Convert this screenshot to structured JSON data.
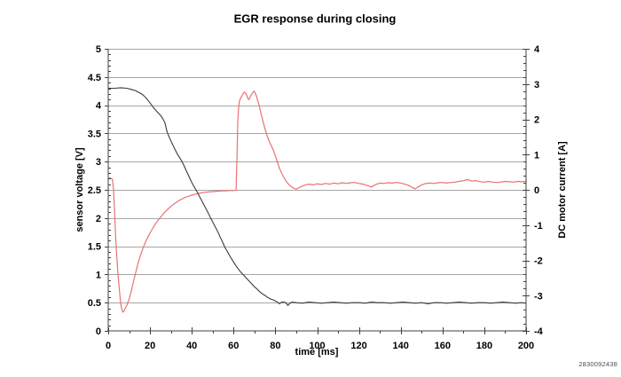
{
  "page": {
    "background": "#ffffff",
    "footnote_id": "2830092438"
  },
  "chart_data": {
    "type": "line",
    "title": "EGR response during closing",
    "xlabel": "time [ms]",
    "ylabel_left": "sensor voltage [V]",
    "ylabel_right": "DC motor current [A]",
    "legend": "none",
    "grid": "horizontal gridlines at every 0.5 V of the left axis",
    "x_range": [
      0,
      200
    ],
    "x_major": 20,
    "x_minor": 10,
    "x_ticks": [
      "0",
      "20",
      "40",
      "60",
      "80",
      "100",
      "120",
      "140",
      "160",
      "180",
      "200"
    ],
    "y_left_range": [
      0,
      5
    ],
    "y_left_major": 0.5,
    "y_left_minor": 0.1,
    "y_left_ticks": [
      "0",
      "0.5",
      "1",
      "1.5",
      "2",
      "2.5",
      "3",
      "3.5",
      "4",
      "4.5",
      "5"
    ],
    "y_right_range": [
      -4,
      4
    ],
    "y_right_major": 1,
    "y_right_minor": 0.2,
    "y_right_ticks": [
      "-4",
      "-3",
      "-2",
      "-1",
      "0",
      "1",
      "2",
      "3",
      "4"
    ],
    "colors": {
      "voltage_line": "#3a3a3a",
      "current_line": "#e87272",
      "grid": "#a6a6a6",
      "axis": "#404040",
      "text": "#000000"
    },
    "series": [
      {
        "name": "sensor voltage",
        "axis": "left",
        "unit": "V",
        "color_key": "voltage_line",
        "points": [
          [
            0,
            4.3
          ],
          [
            3,
            4.3
          ],
          [
            6,
            4.31
          ],
          [
            9,
            4.3
          ],
          [
            11,
            4.28
          ],
          [
            13,
            4.26
          ],
          [
            15,
            4.22
          ],
          [
            16,
            4.2
          ],
          [
            17,
            4.17
          ],
          [
            18,
            4.13
          ],
          [
            19,
            4.09
          ],
          [
            20,
            4.04
          ],
          [
            21,
            3.99
          ],
          [
            22,
            3.94
          ],
          [
            23,
            3.9
          ],
          [
            24,
            3.86
          ],
          [
            25,
            3.82
          ],
          [
            26,
            3.77
          ],
          [
            27,
            3.7
          ],
          [
            27.5,
            3.63
          ],
          [
            28,
            3.55
          ],
          [
            29,
            3.45
          ],
          [
            30,
            3.37
          ],
          [
            31,
            3.29
          ],
          [
            32,
            3.21
          ],
          [
            33,
            3.14
          ],
          [
            34,
            3.08
          ],
          [
            35,
            3.02
          ],
          [
            36,
            2.95
          ],
          [
            37,
            2.87
          ],
          [
            38,
            2.79
          ],
          [
            39,
            2.71
          ],
          [
            40,
            2.63
          ],
          [
            41,
            2.56
          ],
          [
            42,
            2.5
          ],
          [
            43,
            2.43
          ],
          [
            44,
            2.36
          ],
          [
            45,
            2.29
          ],
          [
            46,
            2.22
          ],
          [
            47,
            2.15
          ],
          [
            48,
            2.08
          ],
          [
            49,
            2.0
          ],
          [
            50,
            1.93
          ],
          [
            51,
            1.86
          ],
          [
            52,
            1.79
          ],
          [
            53,
            1.71
          ],
          [
            54,
            1.63
          ],
          [
            55,
            1.55
          ],
          [
            56,
            1.47
          ],
          [
            57,
            1.41
          ],
          [
            58,
            1.34
          ],
          [
            59,
            1.28
          ],
          [
            60,
            1.22
          ],
          [
            61,
            1.16
          ],
          [
            62,
            1.11
          ],
          [
            63,
            1.06
          ],
          [
            64,
            1.02
          ],
          [
            65,
            0.98
          ],
          [
            66,
            0.94
          ],
          [
            67,
            0.9
          ],
          [
            68,
            0.86
          ],
          [
            69,
            0.82
          ],
          [
            70,
            0.78
          ],
          [
            71,
            0.75
          ],
          [
            72,
            0.71
          ],
          [
            73,
            0.68
          ],
          [
            74,
            0.65
          ],
          [
            75,
            0.63
          ],
          [
            76,
            0.6
          ],
          [
            77,
            0.58
          ],
          [
            78,
            0.56
          ],
          [
            79,
            0.55
          ],
          [
            80,
            0.53
          ],
          [
            81,
            0.51
          ],
          [
            82,
            0.48
          ],
          [
            83,
            0.51
          ],
          [
            84,
            0.51
          ],
          [
            85,
            0.5
          ],
          [
            86,
            0.45
          ],
          [
            87,
            0.49
          ],
          [
            88,
            0.51
          ],
          [
            90,
            0.5
          ],
          [
            93,
            0.49
          ],
          [
            96,
            0.51
          ],
          [
            99,
            0.5
          ],
          [
            102,
            0.49
          ],
          [
            105,
            0.5
          ],
          [
            108,
            0.51
          ],
          [
            111,
            0.5
          ],
          [
            114,
            0.49
          ],
          [
            117,
            0.5
          ],
          [
            120,
            0.5
          ],
          [
            123,
            0.49
          ],
          [
            126,
            0.51
          ],
          [
            129,
            0.5
          ],
          [
            132,
            0.5
          ],
          [
            135,
            0.49
          ],
          [
            138,
            0.5
          ],
          [
            141,
            0.51
          ],
          [
            144,
            0.5
          ],
          [
            147,
            0.49
          ],
          [
            150,
            0.5
          ],
          [
            153,
            0.48
          ],
          [
            156,
            0.5
          ],
          [
            159,
            0.5
          ],
          [
            162,
            0.49
          ],
          [
            165,
            0.5
          ],
          [
            168,
            0.51
          ],
          [
            171,
            0.5
          ],
          [
            174,
            0.49
          ],
          [
            177,
            0.5
          ],
          [
            180,
            0.5
          ],
          [
            183,
            0.49
          ],
          [
            186,
            0.5
          ],
          [
            189,
            0.51
          ],
          [
            192,
            0.5
          ],
          [
            195,
            0.49
          ],
          [
            198,
            0.5
          ],
          [
            200,
            0.49
          ]
        ]
      },
      {
        "name": "DC motor current",
        "axis": "right",
        "unit": "A",
        "color_key": "current_line",
        "points": [
          [
            0,
            0.32
          ],
          [
            1,
            0.34
          ],
          [
            2,
            0.3
          ],
          [
            2.5,
            0.05
          ],
          [
            3,
            -0.6
          ],
          [
            3.5,
            -1.25
          ],
          [
            4,
            -1.8
          ],
          [
            4.5,
            -2.25
          ],
          [
            5,
            -2.62
          ],
          [
            5.5,
            -2.95
          ],
          [
            6,
            -3.22
          ],
          [
            6.5,
            -3.4
          ],
          [
            7,
            -3.47
          ],
          [
            7.5,
            -3.44
          ],
          [
            8,
            -3.38
          ],
          [
            9,
            -3.26
          ],
          [
            10,
            -3.1
          ],
          [
            11,
            -2.88
          ],
          [
            12,
            -2.62
          ],
          [
            13,
            -2.38
          ],
          [
            14,
            -2.14
          ],
          [
            15,
            -1.94
          ],
          [
            16,
            -1.76
          ],
          [
            17,
            -1.6
          ],
          [
            18,
            -1.46
          ],
          [
            19,
            -1.34
          ],
          [
            20,
            -1.22
          ],
          [
            21,
            -1.12
          ],
          [
            22,
            -1.02
          ],
          [
            23,
            -0.93
          ],
          [
            24,
            -0.85
          ],
          [
            25,
            -0.78
          ],
          [
            26,
            -0.71
          ],
          [
            27,
            -0.64
          ],
          [
            28,
            -0.58
          ],
          [
            29,
            -0.52
          ],
          [
            30,
            -0.47
          ],
          [
            31,
            -0.42
          ],
          [
            32,
            -0.38
          ],
          [
            33,
            -0.34
          ],
          [
            34,
            -0.3
          ],
          [
            35,
            -0.27
          ],
          [
            36,
            -0.24
          ],
          [
            37,
            -0.21
          ],
          [
            38,
            -0.19
          ],
          [
            39,
            -0.17
          ],
          [
            40,
            -0.15
          ],
          [
            42,
            -0.12
          ],
          [
            44,
            -0.09
          ],
          [
            46,
            -0.07
          ],
          [
            48,
            -0.06
          ],
          [
            50,
            -0.05
          ],
          [
            52,
            -0.04
          ],
          [
            54,
            -0.03
          ],
          [
            56,
            -0.03
          ],
          [
            58,
            -0.02
          ],
          [
            60,
            -0.02
          ],
          [
            61.2,
            -0.01
          ],
          [
            61.6,
            0.9
          ],
          [
            62,
            1.9
          ],
          [
            62.4,
            2.35
          ],
          [
            62.8,
            2.52
          ],
          [
            63.4,
            2.6
          ],
          [
            64,
            2.67
          ],
          [
            64.6,
            2.73
          ],
          [
            65.2,
            2.77
          ],
          [
            65.8,
            2.74
          ],
          [
            66.4,
            2.66
          ],
          [
            67,
            2.57
          ],
          [
            67.4,
            2.56
          ],
          [
            68,
            2.64
          ],
          [
            68.6,
            2.71
          ],
          [
            69.2,
            2.76
          ],
          [
            69.8,
            2.8
          ],
          [
            70.4,
            2.74
          ],
          [
            71,
            2.65
          ],
          [
            71.6,
            2.52
          ],
          [
            72.2,
            2.4
          ],
          [
            73,
            2.2
          ],
          [
            74,
            1.96
          ],
          [
            75,
            1.74
          ],
          [
            76,
            1.54
          ],
          [
            77,
            1.38
          ],
          [
            78,
            1.26
          ],
          [
            79,
            1.13
          ],
          [
            80,
            0.96
          ],
          [
            81,
            0.78
          ],
          [
            82,
            0.61
          ],
          [
            83,
            0.47
          ],
          [
            84,
            0.36
          ],
          [
            85,
            0.26
          ],
          [
            86,
            0.18
          ],
          [
            87,
            0.12
          ],
          [
            88,
            0.07
          ],
          [
            89,
            0.04
          ],
          [
            90,
            0.02
          ],
          [
            91,
            0.05
          ],
          [
            92,
            0.08
          ],
          [
            93,
            0.11
          ],
          [
            94,
            0.13
          ],
          [
            96,
            0.16
          ],
          [
            98,
            0.14
          ],
          [
            100,
            0.17
          ],
          [
            102,
            0.15
          ],
          [
            104,
            0.18
          ],
          [
            106,
            0.16
          ],
          [
            108,
            0.19
          ],
          [
            110,
            0.17
          ],
          [
            112,
            0.2
          ],
          [
            114,
            0.18
          ],
          [
            116,
            0.2
          ],
          [
            118,
            0.21
          ],
          [
            120,
            0.18
          ],
          [
            122,
            0.16
          ],
          [
            124,
            0.12
          ],
          [
            126,
            0.08
          ],
          [
            128,
            0.15
          ],
          [
            130,
            0.19
          ],
          [
            132,
            0.18
          ],
          [
            134,
            0.2
          ],
          [
            136,
            0.19
          ],
          [
            138,
            0.21
          ],
          [
            140,
            0.19
          ],
          [
            142,
            0.16
          ],
          [
            144,
            0.12
          ],
          [
            146,
            0.05
          ],
          [
            147,
            0.03
          ],
          [
            148,
            0.07
          ],
          [
            150,
            0.14
          ],
          [
            152,
            0.18
          ],
          [
            154,
            0.19
          ],
          [
            156,
            0.18
          ],
          [
            158,
            0.2
          ],
          [
            160,
            0.21
          ],
          [
            162,
            0.19
          ],
          [
            164,
            0.21
          ],
          [
            166,
            0.22
          ],
          [
            168,
            0.24
          ],
          [
            170,
            0.26
          ],
          [
            172,
            0.29
          ],
          [
            174,
            0.25
          ],
          [
            176,
            0.26
          ],
          [
            178,
            0.23
          ],
          [
            180,
            0.22
          ],
          [
            182,
            0.24
          ],
          [
            184,
            0.22
          ],
          [
            186,
            0.21
          ],
          [
            188,
            0.22
          ],
          [
            190,
            0.24
          ],
          [
            192,
            0.23
          ],
          [
            194,
            0.22
          ],
          [
            196,
            0.24
          ],
          [
            198,
            0.23
          ],
          [
            200,
            0.24
          ]
        ]
      }
    ]
  }
}
